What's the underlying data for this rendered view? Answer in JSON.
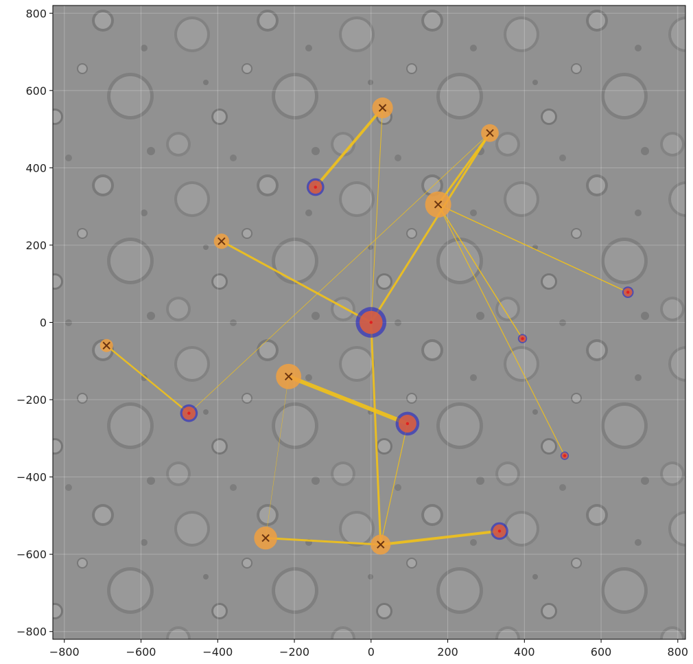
{
  "chart_data": {
    "type": "scatter",
    "title": "",
    "xlabel": "",
    "ylabel": "",
    "xlim": [
      -830,
      820
    ],
    "ylim": [
      -820,
      820
    ],
    "grid": true,
    "background": "grayscale cratered planetary surface image",
    "x_ticks": [
      -800,
      -600,
      -400,
      -200,
      0,
      200,
      400,
      600,
      800
    ],
    "y_ticks": [
      -800,
      -600,
      -400,
      -200,
      0,
      200,
      400,
      600,
      800
    ],
    "x_tick_labels": [
      "−800",
      "−600",
      "−400",
      "−200",
      "0",
      "200",
      "400",
      "600",
      "800"
    ],
    "y_tick_labels": [
      "−800",
      "−600",
      "−400",
      "−200",
      "0",
      "200",
      "400",
      "600",
      "800"
    ],
    "colors": {
      "orange_node": "#f0a040",
      "blue_ring": "#1818c8",
      "red_node": "#e0603a",
      "edge": "#f2c21a",
      "marker": "#6b3410"
    },
    "nodes": [
      {
        "id": "A",
        "x": 0,
        "y": 0,
        "kind": "hub",
        "r": 40
      },
      {
        "id": "B",
        "x": 30,
        "y": 555,
        "kind": "orange",
        "r": 27
      },
      {
        "id": "C",
        "x": 310,
        "y": 490,
        "kind": "orange",
        "r": 23
      },
      {
        "id": "D",
        "x": -145,
        "y": 350,
        "kind": "blue",
        "r": 23
      },
      {
        "id": "E",
        "x": 175,
        "y": 305,
        "kind": "orange",
        "r": 34
      },
      {
        "id": "F",
        "x": -390,
        "y": 210,
        "kind": "orange",
        "r": 20
      },
      {
        "id": "G",
        "x": 670,
        "y": 78,
        "kind": "blue",
        "r": 15
      },
      {
        "id": "H",
        "x": 395,
        "y": -42,
        "kind": "blue",
        "r": 12
      },
      {
        "id": "I",
        "x": -690,
        "y": -60,
        "kind": "orange",
        "r": 17
      },
      {
        "id": "J",
        "x": -215,
        "y": -140,
        "kind": "orange",
        "r": 33
      },
      {
        "id": "K",
        "x": -475,
        "y": -235,
        "kind": "blue",
        "r": 23
      },
      {
        "id": "L",
        "x": 95,
        "y": -262,
        "kind": "blue",
        "r": 31
      },
      {
        "id": "M",
        "x": 505,
        "y": -345,
        "kind": "blue",
        "r": 11
      },
      {
        "id": "N",
        "x": -275,
        "y": -558,
        "kind": "orange",
        "r": 30
      },
      {
        "id": "O",
        "x": 25,
        "y": -575,
        "kind": "orange",
        "r": 26
      },
      {
        "id": "P",
        "x": 335,
        "y": -540,
        "kind": "blue",
        "r": 23
      }
    ],
    "edges": [
      {
        "from": "A",
        "to": "F",
        "w": 3
      },
      {
        "from": "A",
        "to": "C",
        "w": 3
      },
      {
        "from": "A",
        "to": "B",
        "w": 1
      },
      {
        "from": "A",
        "to": "O",
        "w": 3
      },
      {
        "from": "D",
        "to": "B",
        "w": 4
      },
      {
        "from": "E",
        "to": "C",
        "w": 3
      },
      {
        "from": "E",
        "to": "G",
        "w": 1.5
      },
      {
        "from": "E",
        "to": "H",
        "w": 1.5
      },
      {
        "from": "E",
        "to": "M",
        "w": 1.2
      },
      {
        "from": "K",
        "to": "C",
        "w": 0.8
      },
      {
        "from": "K",
        "to": "I",
        "w": 2.5
      },
      {
        "from": "J",
        "to": "L",
        "w": 6
      },
      {
        "from": "L",
        "to": "O",
        "w": 1.2
      },
      {
        "from": "N",
        "to": "O",
        "w": 3
      },
      {
        "from": "O",
        "to": "P",
        "w": 4
      },
      {
        "from": "J",
        "to": "N",
        "w": 0.5
      }
    ]
  }
}
